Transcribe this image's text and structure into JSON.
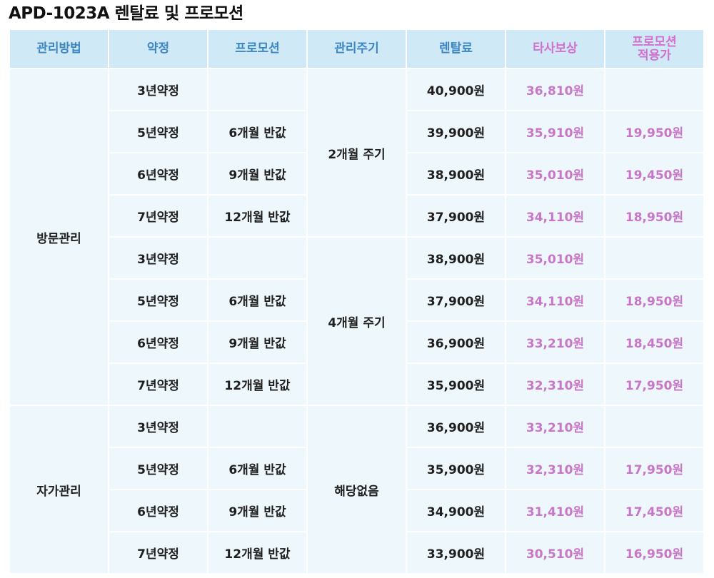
{
  "title": "APD-1023A 렌탈료 및 프로모션",
  "headers": {
    "management": "관리방법",
    "contract": "약정",
    "promotion": "프로모션",
    "cycle": "관리주기",
    "rental_fee": "렌탈료",
    "competitor_comp": "타사보상",
    "promo_applied_line1": "프로모션",
    "promo_applied_line2": "적용가"
  },
  "colors": {
    "header_bg": "#cfe9f7",
    "header_text": "#3d86c4",
    "accent_pink": "#d46fd0",
    "cell_bg": "#eef7fb"
  },
  "groups": [
    {
      "management": "방문관리",
      "cycles": [
        {
          "cycle": "2개월 주기",
          "rows": [
            {
              "contract": "3년약정",
              "promotion": "",
              "rental_fee": "40,900원",
              "competitor_comp": "36,810원",
              "promo_price": ""
            },
            {
              "contract": "5년약정",
              "promotion": "6개월 반값",
              "rental_fee": "39,900원",
              "competitor_comp": "35,910원",
              "promo_price": "19,950원"
            },
            {
              "contract": "6년약정",
              "promotion": "9개월 반값",
              "rental_fee": "38,900원",
              "competitor_comp": "35,010원",
              "promo_price": "19,450원"
            },
            {
              "contract": "7년약정",
              "promotion": "12개월 반값",
              "rental_fee": "37,900원",
              "competitor_comp": "34,110원",
              "promo_price": "18,950원"
            }
          ]
        },
        {
          "cycle": "4개월 주기",
          "rows": [
            {
              "contract": "3년약정",
              "promotion": "",
              "rental_fee": "38,900원",
              "competitor_comp": "35,010원",
              "promo_price": ""
            },
            {
              "contract": "5년약정",
              "promotion": "6개월 반값",
              "rental_fee": "37,900원",
              "competitor_comp": "34,110원",
              "promo_price": "18,950원"
            },
            {
              "contract": "6년약정",
              "promotion": "9개월 반값",
              "rental_fee": "36,900원",
              "competitor_comp": "33,210원",
              "promo_price": "18,450원"
            },
            {
              "contract": "7년약정",
              "promotion": "12개월 반값",
              "rental_fee": "35,900원",
              "competitor_comp": "32,310원",
              "promo_price": "17,950원"
            }
          ]
        }
      ]
    },
    {
      "management": "자가관리",
      "cycles": [
        {
          "cycle": "해당없음",
          "rows": [
            {
              "contract": "3년약정",
              "promotion": "",
              "rental_fee": "36,900원",
              "competitor_comp": "33,210원",
              "promo_price": ""
            },
            {
              "contract": "5년약정",
              "promotion": "6개월 반값",
              "rental_fee": "35,900원",
              "competitor_comp": "32,310원",
              "promo_price": "17,950원"
            },
            {
              "contract": "6년약정",
              "promotion": "9개월 반값",
              "rental_fee": "34,900원",
              "competitor_comp": "31,410원",
              "promo_price": "17,450원"
            },
            {
              "contract": "7년약정",
              "promotion": "12개월 반값",
              "rental_fee": "33,900원",
              "competitor_comp": "30,510원",
              "promo_price": "16,950원"
            }
          ]
        }
      ]
    }
  ]
}
